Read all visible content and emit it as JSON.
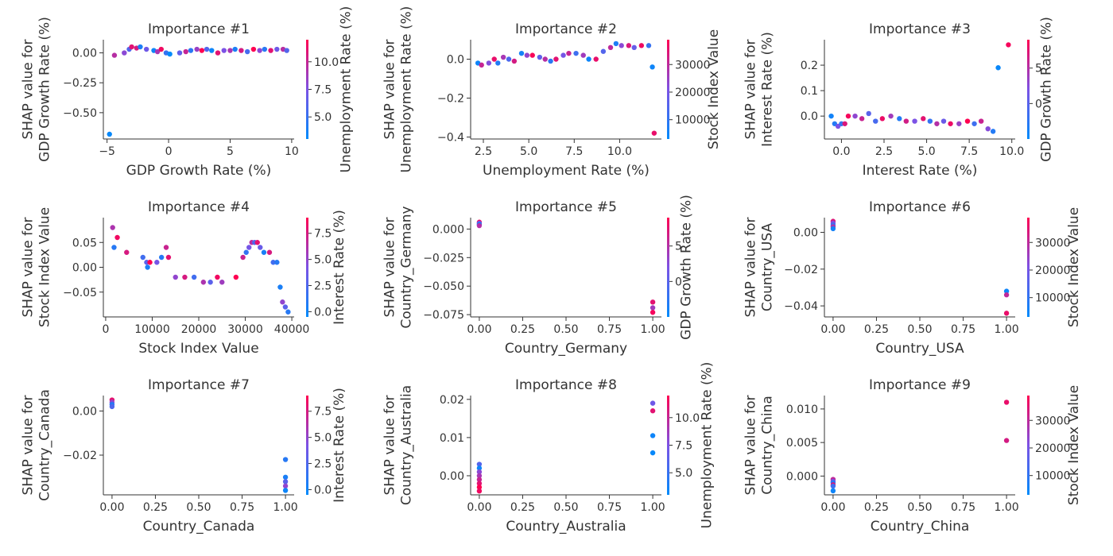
{
  "chart_data": [
    {
      "type": "scatter",
      "title": "Importance #1",
      "xlabel": "GDP Growth Rate (%)",
      "ylabel": "SHAP value for\nGDP Growth Rate (%)",
      "colorbar_label": "Unemployment Rate (%)",
      "xlim": [
        -5.3,
        10.2
      ],
      "ylim": [
        -0.72,
        0.11
      ],
      "xticks": [
        -5,
        0,
        5,
        10
      ],
      "xtick_labels": [
        "−5",
        "0",
        "5",
        "10"
      ],
      "yticks": [
        0.0,
        -0.25,
        -0.5
      ],
      "ytick_labels": [
        "0.00",
        "−0.25",
        "−0.50"
      ],
      "clim": [
        3.0,
        12.0
      ],
      "cticks": [
        5.0,
        7.5,
        10.0
      ],
      "ctick_labels": [
        "5.0",
        "7.5",
        "10.0"
      ],
      "points": [
        [
          -4.8,
          -0.68,
          3.2
        ],
        [
          -4.4,
          -0.02,
          9.5
        ],
        [
          -3.6,
          0.0,
          8.0
        ],
        [
          -3.2,
          0.03,
          6.0
        ],
        [
          -3.0,
          0.05,
          11.0
        ],
        [
          -2.6,
          0.04,
          10.5
        ],
        [
          -2.3,
          0.05,
          4.0
        ],
        [
          -1.8,
          0.03,
          7.0
        ],
        [
          -1.2,
          0.02,
          3.5
        ],
        [
          -0.9,
          0.01,
          9.0
        ],
        [
          -0.6,
          0.03,
          11.5
        ],
        [
          -0.2,
          0.0,
          5.0
        ],
        [
          0.1,
          -0.01,
          3.0
        ],
        [
          0.9,
          0.0,
          6.5
        ],
        [
          1.4,
          0.01,
          10.0
        ],
        [
          1.8,
          0.02,
          4.5
        ],
        [
          2.3,
          0.03,
          8.5
        ],
        [
          2.7,
          0.02,
          12.0
        ],
        [
          3.1,
          0.03,
          6.0
        ],
        [
          3.5,
          0.02,
          3.5
        ],
        [
          4.0,
          0.0,
          11.0
        ],
        [
          4.5,
          0.02,
          7.5
        ],
        [
          5.0,
          0.02,
          9.0
        ],
        [
          5.4,
          0.03,
          4.0
        ],
        [
          5.9,
          0.02,
          10.5
        ],
        [
          6.4,
          0.01,
          5.5
        ],
        [
          6.9,
          0.03,
          12.0
        ],
        [
          7.4,
          0.02,
          8.0
        ],
        [
          7.8,
          0.03,
          4.5
        ],
        [
          8.3,
          0.02,
          11.0
        ],
        [
          8.8,
          0.03,
          7.0
        ],
        [
          9.3,
          0.03,
          9.5
        ],
        [
          9.6,
          0.02,
          6.0
        ]
      ]
    },
    {
      "type": "scatter",
      "title": "Importance #2",
      "xlabel": "Unemployment Rate (%)",
      "ylabel": "SHAP value for\nUnemployment Rate (%)",
      "colorbar_label": "Stock Index Value",
      "xlim": [
        1.8,
        12.3
      ],
      "ylim": [
        -0.41,
        0.1
      ],
      "xticks": [
        2.5,
        5.0,
        7.5,
        10.0
      ],
      "xtick_labels": [
        "2.5",
        "5.0",
        "7.5",
        "10.0"
      ],
      "yticks": [
        0.0,
        -0.2,
        -0.4
      ],
      "ytick_labels": [
        "0.0",
        "−0.2",
        "−0.4"
      ],
      "clim": [
        3000,
        39000
      ],
      "cticks": [
        10000,
        20000,
        30000
      ],
      "ctick_labels": [
        "10000",
        "20000",
        "30000"
      ],
      "points": [
        [
          2.2,
          -0.02,
          5000
        ],
        [
          2.4,
          -0.03,
          31000
        ],
        [
          2.8,
          -0.02,
          22000
        ],
        [
          3.1,
          0.0,
          36000
        ],
        [
          3.3,
          -0.02,
          8000
        ],
        [
          3.6,
          0.01,
          27000
        ],
        [
          3.9,
          0.0,
          14000
        ],
        [
          4.2,
          -0.01,
          33000
        ],
        [
          4.6,
          0.03,
          6000
        ],
        [
          4.9,
          0.02,
          24000
        ],
        [
          5.2,
          0.02,
          38000
        ],
        [
          5.6,
          0.01,
          17000
        ],
        [
          5.9,
          0.0,
          29000
        ],
        [
          6.2,
          -0.01,
          9000
        ],
        [
          6.5,
          0.0,
          35000
        ],
        [
          6.9,
          0.02,
          20000
        ],
        [
          7.2,
          0.03,
          31000
        ],
        [
          7.6,
          0.03,
          12000
        ],
        [
          8.0,
          0.02,
          26000
        ],
        [
          8.3,
          0.0,
          5000
        ],
        [
          8.7,
          0.0,
          36000
        ],
        [
          9.1,
          0.04,
          15000
        ],
        [
          9.5,
          0.06,
          30000
        ],
        [
          9.8,
          0.08,
          7000
        ],
        [
          10.1,
          0.07,
          23000
        ],
        [
          10.5,
          0.07,
          34000
        ],
        [
          10.8,
          0.06,
          18000
        ],
        [
          11.2,
          0.07,
          37000
        ],
        [
          11.6,
          0.07,
          11000
        ],
        [
          11.8,
          -0.04,
          5000
        ],
        [
          11.9,
          -0.38,
          36000
        ]
      ]
    },
    {
      "type": "scatter",
      "title": "Importance #3",
      "xlabel": "Interest Rate (%)",
      "ylabel": "SHAP value for\nInterest Rate (%)",
      "colorbar_label": "GDP Growth Rate (%)",
      "xlim": [
        -1.0,
        10.2
      ],
      "ylim": [
        -0.09,
        0.3
      ],
      "xticks": [
        0.0,
        2.5,
        5.0,
        7.5,
        10.0
      ],
      "xtick_labels": [
        "0.0",
        "2.5",
        "5.0",
        "7.5",
        "10.0"
      ],
      "yticks": [
        0.0,
        0.1,
        0.2
      ],
      "ytick_labels": [
        "0.0",
        "0.1",
        "0.2"
      ],
      "clim": [
        -5.0,
        9.0
      ],
      "cticks": [
        0,
        5
      ],
      "ctick_labels": [
        "0",
        "5"
      ],
      "points": [
        [
          -0.6,
          0.0,
          -4.0
        ],
        [
          -0.4,
          -0.03,
          -3.0
        ],
        [
          -0.2,
          -0.04,
          2.0
        ],
        [
          0.0,
          -0.03,
          -2.0
        ],
        [
          0.2,
          -0.03,
          7.0
        ],
        [
          0.4,
          0.0,
          8.5
        ],
        [
          0.8,
          0.0,
          3.0
        ],
        [
          1.2,
          -0.01,
          6.0
        ],
        [
          1.6,
          0.01,
          0.0
        ],
        [
          2.0,
          -0.02,
          -1.0
        ],
        [
          2.4,
          -0.01,
          8.0
        ],
        [
          2.9,
          0.0,
          4.0
        ],
        [
          3.4,
          -0.01,
          -3.0
        ],
        [
          3.8,
          -0.02,
          6.5
        ],
        [
          4.3,
          -0.02,
          2.0
        ],
        [
          4.8,
          -0.01,
          7.5
        ],
        [
          5.2,
          -0.02,
          -2.0
        ],
        [
          5.6,
          -0.03,
          5.0
        ],
        [
          6.0,
          -0.02,
          1.0
        ],
        [
          6.4,
          -0.03,
          8.0
        ],
        [
          6.9,
          -0.03,
          3.5
        ],
        [
          7.4,
          -0.02,
          9.0
        ],
        [
          7.8,
          -0.03,
          -1.5
        ],
        [
          8.2,
          -0.02,
          6.0
        ],
        [
          8.6,
          -0.05,
          2.5
        ],
        [
          8.9,
          -0.06,
          -3.0
        ],
        [
          9.2,
          0.19,
          -4.5
        ],
        [
          9.8,
          0.28,
          8.5
        ]
      ]
    },
    {
      "type": "scatter",
      "title": "Importance #4",
      "xlabel": "Stock Index Value",
      "ylabel": "SHAP value for\nStock Index Value",
      "colorbar_label": "Interest Rate (%)",
      "xlim": [
        -500,
        40500
      ],
      "ylim": [
        -0.1,
        0.1
      ],
      "xticks": [
        0,
        10000,
        20000,
        30000,
        40000
      ],
      "xtick_labels": [
        "0",
        "10000",
        "20000",
        "30000",
        "40000"
      ],
      "yticks": [
        0.05,
        0.0,
        -0.05
      ],
      "ytick_labels": [
        "0.05",
        "0.00",
        "−0.05"
      ],
      "clim": [
        -0.5,
        9.0
      ],
      "cticks": [
        0.0,
        2.5,
        5.0,
        7.5
      ],
      "ctick_labels": [
        "0.0",
        "2.5",
        "5.0",
        "7.5"
      ],
      "points": [
        [
          1500,
          0.08,
          6.0
        ],
        [
          2500,
          0.06,
          8.5
        ],
        [
          1800,
          0.04,
          1.0
        ],
        [
          4500,
          0.03,
          7.5
        ],
        [
          8000,
          0.02,
          2.0
        ],
        [
          9000,
          0.0,
          0.5
        ],
        [
          8800,
          0.01,
          3.0
        ],
        [
          9500,
          0.01,
          9.0
        ],
        [
          11000,
          0.01,
          4.0
        ],
        [
          12000,
          0.02,
          1.0
        ],
        [
          13500,
          0.02,
          8.0
        ],
        [
          13000,
          0.04,
          7.0
        ],
        [
          15000,
          -0.02,
          5.0
        ],
        [
          17000,
          -0.02,
          7.5
        ],
        [
          19000,
          -0.02,
          2.0
        ],
        [
          21000,
          -0.03,
          6.0
        ],
        [
          22500,
          -0.03,
          3.0
        ],
        [
          24000,
          -0.02,
          8.5
        ],
        [
          25000,
          -0.03,
          5.5
        ],
        [
          28000,
          -0.02,
          9.0
        ],
        [
          29500,
          0.02,
          7.0
        ],
        [
          30200,
          0.03,
          1.5
        ],
        [
          30800,
          0.04,
          4.0
        ],
        [
          31400,
          0.05,
          6.5
        ],
        [
          32000,
          0.05,
          2.5
        ],
        [
          32600,
          0.05,
          8.0
        ],
        [
          33200,
          0.04,
          3.5
        ],
        [
          34000,
          0.03,
          0.5
        ],
        [
          35200,
          0.03,
          7.5
        ],
        [
          36000,
          0.01,
          2.0
        ],
        [
          36800,
          0.01,
          1.0
        ],
        [
          37500,
          -0.04,
          0.5
        ],
        [
          38000,
          -0.07,
          5.0
        ],
        [
          38600,
          -0.08,
          3.0
        ],
        [
          39200,
          -0.09,
          1.0
        ]
      ]
    },
    {
      "type": "scatter",
      "title": "Importance #5",
      "xlabel": "Country_Germany",
      "ylabel": "SHAP value for\nCountry_Germany",
      "colorbar_label": "GDP Growth Rate (%)",
      "xlim": [
        -0.05,
        1.05
      ],
      "ylim": [
        -0.077,
        0.01
      ],
      "xticks": [
        0.0,
        0.25,
        0.5,
        0.75,
        1.0
      ],
      "xtick_labels": [
        "0.00",
        "0.25",
        "0.50",
        "0.75",
        "1.00"
      ],
      "yticks": [
        0.0,
        -0.025,
        -0.05,
        -0.075
      ],
      "ytick_labels": [
        "0.000",
        "−0.025",
        "−0.050",
        "−0.075"
      ],
      "clim": [
        -5.0,
        9.0
      ],
      "cticks": [
        0,
        5
      ],
      "ctick_labels": [
        "0",
        "5"
      ],
      "points": [
        [
          0.0,
          0.006,
          8.0
        ],
        [
          0.0,
          0.005,
          2.0
        ],
        [
          0.0,
          0.004,
          -4.0
        ],
        [
          0.0,
          0.003,
          5.0
        ],
        [
          1.0,
          -0.064,
          7.5
        ],
        [
          1.0,
          -0.069,
          4.0
        ],
        [
          1.0,
          -0.073,
          8.5
        ]
      ]
    },
    {
      "type": "scatter",
      "title": "Importance #6",
      "xlabel": "Country_USA",
      "ylabel": "SHAP value for\nCountry_USA",
      "colorbar_label": "Stock Index Value",
      "xlim": [
        -0.05,
        1.05
      ],
      "ylim": [
        -0.046,
        0.008
      ],
      "xticks": [
        0.0,
        0.25,
        0.5,
        0.75,
        1.0
      ],
      "xtick_labels": [
        "0.00",
        "0.25",
        "0.50",
        "0.75",
        "1.00"
      ],
      "yticks": [
        0.0,
        -0.02,
        -0.04
      ],
      "ytick_labels": [
        "0.00",
        "−0.02",
        "−0.04"
      ],
      "clim": [
        3000,
        39000
      ],
      "cticks": [
        10000,
        20000,
        30000
      ],
      "ctick_labels": [
        "10000",
        "20000",
        "30000"
      ],
      "points": [
        [
          0.0,
          0.006,
          34000
        ],
        [
          0.0,
          0.005,
          22000
        ],
        [
          0.0,
          0.004,
          12000
        ],
        [
          0.0,
          0.003,
          28000
        ],
        [
          0.0,
          0.002,
          6000
        ],
        [
          1.0,
          -0.032,
          5000
        ],
        [
          1.0,
          -0.034,
          30000
        ],
        [
          1.0,
          -0.044,
          36000
        ]
      ]
    },
    {
      "type": "scatter",
      "title": "Importance #7",
      "xlabel": "Country_Canada",
      "ylabel": "SHAP value for\nCountry_Canada",
      "colorbar_label": "Interest Rate (%)",
      "xlim": [
        -0.05,
        1.05
      ],
      "ylim": [
        -0.038,
        0.007
      ],
      "xticks": [
        0.0,
        0.25,
        0.5,
        0.75,
        1.0
      ],
      "xtick_labels": [
        "0.00",
        "0.25",
        "0.50",
        "0.75",
        "1.00"
      ],
      "yticks": [
        0.0,
        -0.02
      ],
      "ytick_labels": [
        "0.00",
        "−0.02"
      ],
      "clim": [
        -0.5,
        9.0
      ],
      "cticks": [
        0.0,
        2.5,
        5.0,
        7.5
      ],
      "ctick_labels": [
        "0.0",
        "2.5",
        "5.0",
        "7.5"
      ],
      "points": [
        [
          0.0,
          0.005,
          8.0
        ],
        [
          0.0,
          0.004,
          5.0
        ],
        [
          0.0,
          0.003,
          1.0
        ],
        [
          0.0,
          0.002,
          2.5
        ],
        [
          1.0,
          -0.022,
          1.0
        ],
        [
          1.0,
          -0.03,
          0.5
        ],
        [
          1.0,
          -0.032,
          3.0
        ],
        [
          1.0,
          -0.034,
          5.0
        ],
        [
          1.0,
          -0.036,
          0.0
        ]
      ]
    },
    {
      "type": "scatter",
      "title": "Importance #8",
      "xlabel": "Country_Australia",
      "ylabel": "SHAP value for\nCountry_Australia",
      "colorbar_label": "Unemployment Rate (%)",
      "xlim": [
        -0.05,
        1.05
      ],
      "ylim": [
        -0.005,
        0.021
      ],
      "xticks": [
        0.0,
        0.25,
        0.5,
        0.75,
        1.0
      ],
      "xtick_labels": [
        "0.00",
        "0.25",
        "0.50",
        "0.75",
        "1.00"
      ],
      "yticks": [
        0.02,
        0.01,
        0.0
      ],
      "ytick_labels": [
        "0.02",
        "0.01",
        "0.00"
      ],
      "clim": [
        3.0,
        12.0
      ],
      "cticks": [
        5.0,
        7.5,
        10.0
      ],
      "ctick_labels": [
        "5.0",
        "7.5",
        "10.0"
      ],
      "points": [
        [
          0.0,
          0.003,
          6.0
        ],
        [
          0.0,
          0.002,
          3.5
        ],
        [
          0.0,
          0.001,
          8.0
        ],
        [
          0.0,
          0.0,
          9.0
        ],
        [
          0.0,
          -0.001,
          10.0
        ],
        [
          0.0,
          -0.002,
          11.0
        ],
        [
          0.0,
          -0.003,
          12.0
        ],
        [
          0.0,
          -0.004,
          11.5
        ],
        [
          1.0,
          0.019,
          7.0
        ],
        [
          1.0,
          0.017,
          11.0
        ],
        [
          1.0,
          0.0105,
          3.5
        ],
        [
          1.0,
          0.006,
          3.2
        ]
      ]
    },
    {
      "type": "scatter",
      "title": "Importance #9",
      "xlabel": "Country_China",
      "ylabel": "SHAP value for\nCountry_China",
      "colorbar_label": "Stock Index Value",
      "xlim": [
        -0.05,
        1.05
      ],
      "ylim": [
        -0.0028,
        0.012
      ],
      "xticks": [
        0.0,
        0.25,
        0.5,
        0.75,
        1.0
      ],
      "xtick_labels": [
        "0.00",
        "0.25",
        "0.50",
        "0.75",
        "1.00"
      ],
      "yticks": [
        0.01,
        0.005,
        0.0
      ],
      "ytick_labels": [
        "0.010",
        "0.005",
        "0.000"
      ],
      "clim": [
        3000,
        39000
      ],
      "cticks": [
        10000,
        20000,
        30000
      ],
      "ctick_labels": [
        "10000",
        "20000",
        "30000"
      ],
      "points": [
        [
          0.0,
          -0.0005,
          30000
        ],
        [
          0.0,
          -0.0008,
          20000
        ],
        [
          0.0,
          -0.001,
          8000
        ],
        [
          0.0,
          -0.0013,
          35000
        ],
        [
          0.0,
          -0.0015,
          12000
        ],
        [
          0.0,
          -0.0022,
          5000
        ],
        [
          1.0,
          0.011,
          36000
        ],
        [
          1.0,
          0.0053,
          33000
        ]
      ]
    }
  ],
  "colors": {
    "low": "#008bfb",
    "mid": "#7c52e5",
    "high": "#ff0051"
  }
}
